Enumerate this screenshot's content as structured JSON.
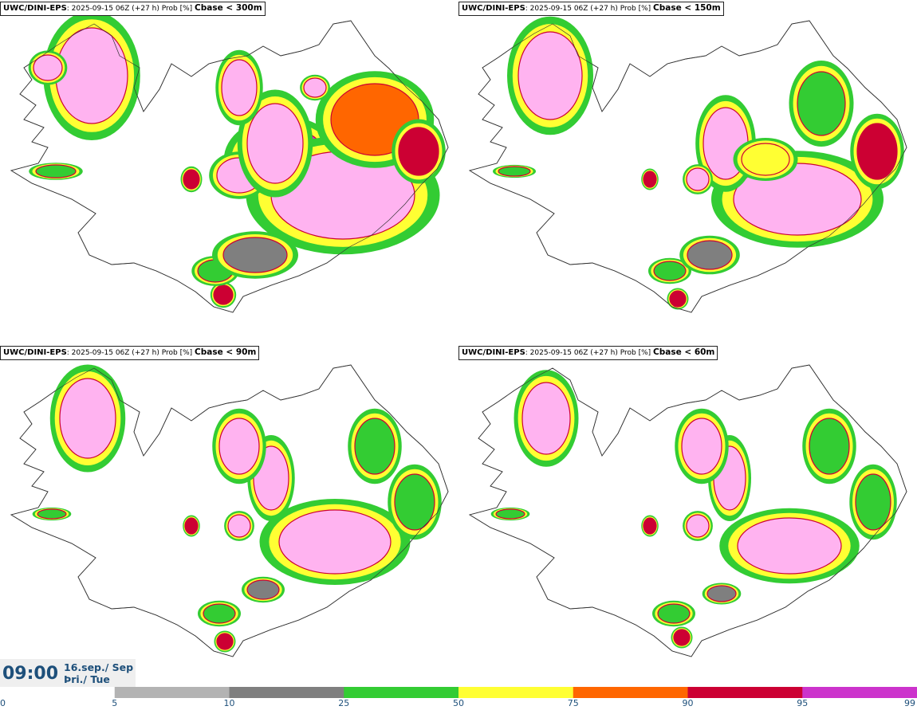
{
  "panels": [
    {
      "model": "UWC/DINI-EPS",
      "meta": ": 2025-09-15 06Z (+27 h) Prob [%] ",
      "threshold": "Cbase < 300m"
    },
    {
      "model": "UWC/DINI-EPS",
      "meta": ": 2025-09-15 06Z (+27 h) Prob [%] ",
      "threshold": "Cbase < 150m"
    },
    {
      "model": "UWC/DINI-EPS",
      "meta": ": 2025-09-15 06Z (+27 h) Prob [%] ",
      "threshold": "Cbase < 90m"
    },
    {
      "model": "UWC/DINI-EPS",
      "meta": ": 2025-09-15 06Z (+27 h) Prob [%] ",
      "threshold": "Cbase < 60m"
    }
  ],
  "valid_time": {
    "time": "09:00",
    "date_line1": "16.sep./ Sep",
    "date_line2": "Þri./ Tue"
  },
  "legend": {
    "ticks": [
      "0",
      "5",
      "10",
      "25",
      "50",
      "75",
      "90",
      "95",
      "99"
    ],
    "colors": [
      "#ffffff",
      "#b3b3b3",
      "#7f7f7f",
      "#33cc33",
      "#ffff33",
      "#ff6600",
      "#cc0033",
      "#cc33cc",
      "#ffb3f0"
    ]
  }
}
